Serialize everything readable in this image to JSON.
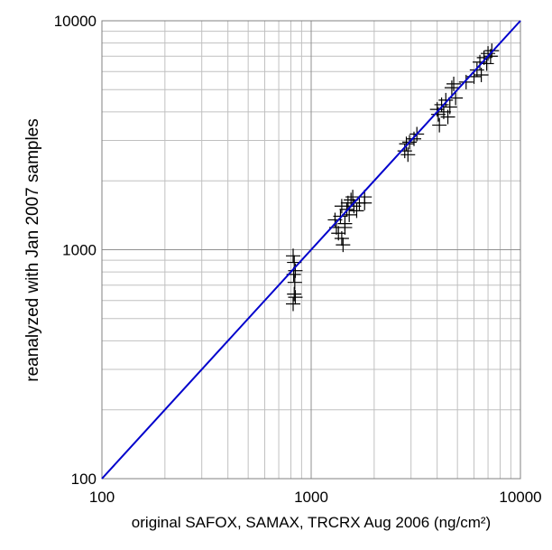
{
  "chart_data": {
    "type": "scatter",
    "xlabel": "original SAFOX, SAMAX, TRCRX Aug 2006 (ng/cm²)",
    "ylabel": "reanalyzed with Jan 2007 samples",
    "xscale": "log",
    "yscale": "log",
    "xlim": [
      100,
      10000
    ],
    "ylim": [
      100,
      10000
    ],
    "xticks": [
      100,
      1000,
      10000
    ],
    "yticks": [
      100,
      1000,
      10000
    ],
    "grid": true,
    "minor_grid": true,
    "series": [
      {
        "color": "#000000",
        "marker": "+",
        "x": [
          820,
          830,
          840,
          825,
          835,
          830,
          840,
          820,
          1300,
          1320,
          1350,
          1380,
          1400,
          1420,
          1450,
          1480,
          1500,
          1520,
          1550,
          1580,
          1600,
          1650,
          1700,
          1800,
          1800,
          1400,
          1450,
          2800,
          2850,
          2900,
          2950,
          3100,
          3200,
          4000,
          4050,
          4100,
          4200,
          4300,
          4400,
          4500,
          4600,
          4700,
          4800,
          4900,
          5500,
          6000,
          6200,
          6400,
          6500,
          6700,
          6900,
          7000,
          7200,
          7300
        ],
        "values": [
          940,
          880,
          810,
          780,
          720,
          640,
          620,
          580,
          1350,
          1250,
          1180,
          1400,
          1120,
          1050,
          1300,
          1500,
          1600,
          1420,
          1650,
          1700,
          1550,
          1480,
          1600,
          1700,
          1600,
          1550,
          1250,
          2700,
          2900,
          2600,
          2950,
          3050,
          3200,
          4100,
          3900,
          3500,
          4300,
          4000,
          4500,
          3800,
          4200,
          5100,
          5300,
          4600,
          5400,
          5700,
          6100,
          6600,
          5800,
          6900,
          6500,
          7200,
          7000,
          7400
        ]
      }
    ],
    "line": {
      "x": [
        100,
        10000
      ],
      "values": [
        100,
        10000
      ],
      "color": "#0000cc"
    }
  }
}
